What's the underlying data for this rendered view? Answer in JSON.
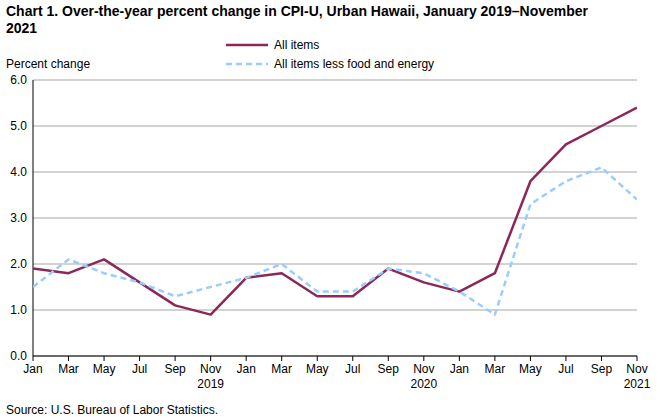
{
  "chart_data": {
    "type": "line",
    "title": "Chart 1. Over-the-year percent change in CPI-U, Urban Hawaii, January 2019–November 2021",
    "y_label": "Percent change",
    "source": "Source: U.S. Bureau of Labor Statistics.",
    "categories": [
      "Jan",
      "Mar",
      "May",
      "Jul",
      "Sep",
      "Nov 2019",
      "Jan",
      "Mar",
      "May",
      "Jul",
      "Sep",
      "Nov 2020",
      "Jan",
      "Mar",
      "May",
      "Jul",
      "Sep",
      "Nov 2021"
    ],
    "series": [
      {
        "name": "All items",
        "color": "#8b2858",
        "line_style": "solid",
        "values": [
          1.9,
          1.8,
          2.1,
          1.6,
          1.1,
          0.9,
          1.7,
          1.8,
          1.3,
          1.3,
          1.9,
          1.6,
          1.4,
          1.8,
          3.8,
          4.6,
          5.0,
          5.4
        ]
      },
      {
        "name": "All items less food and energy",
        "color": "#99ccff",
        "line_style": "dashed",
        "values": [
          1.5,
          2.1,
          1.8,
          1.6,
          1.3,
          1.5,
          1.7,
          2.0,
          1.4,
          1.4,
          1.9,
          1.8,
          1.4,
          0.9,
          3.3,
          3.8,
          4.1,
          3.4
        ]
      }
    ],
    "ylim": [
      0,
      6
    ],
    "yticks": [
      {
        "value": 0,
        "label": "0.0"
      },
      {
        "value": 1,
        "label": "1.0"
      },
      {
        "value": 2,
        "label": "2.0"
      },
      {
        "value": 3,
        "label": "3.0"
      },
      {
        "value": 4,
        "label": "4.0"
      },
      {
        "value": 5,
        "label": "5.0"
      },
      {
        "value": 6,
        "label": "6.0"
      }
    ],
    "grid": true,
    "legend": "top"
  }
}
